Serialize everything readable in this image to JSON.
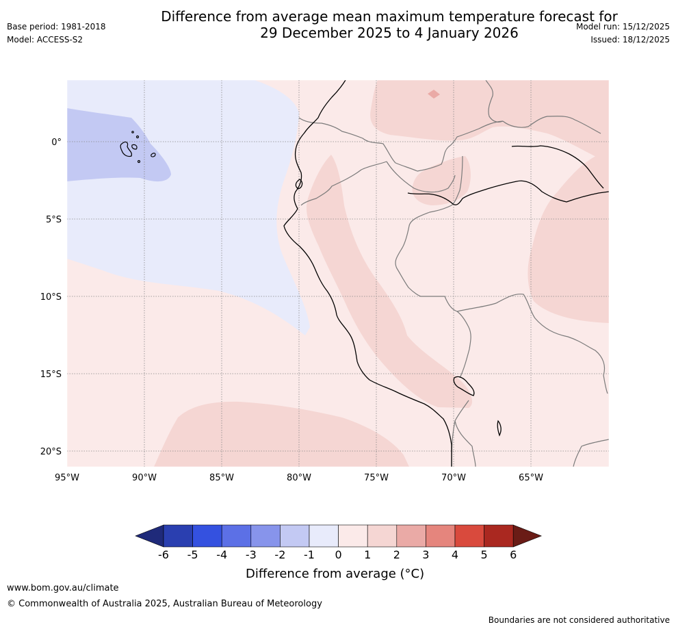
{
  "header": {
    "title_line1": "Difference from average mean maximum temperature forecast for",
    "title_line2": "29 December 2025 to 4 January 2026",
    "base_period": "Base period: 1981-2018",
    "model": "Model: ACCESS-S2",
    "model_run": "Model run: 15/12/2025",
    "issued": "Issued: 18/12/2025"
  },
  "map": {
    "lon_range": [
      -95,
      -60
    ],
    "lat_range": [
      -21,
      4
    ],
    "lon_ticks": [
      "95°W",
      "90°W",
      "85°W",
      "80°W",
      "75°W",
      "70°W",
      "65°W"
    ],
    "lat_ticks": [
      "0°",
      "5°S",
      "10°S",
      "15°S",
      "20°S"
    ],
    "colors": {
      "ocean_cool": "#e8ebfb",
      "galapagos_cool": "#c3c9f3",
      "warm_light": "#fbeae9",
      "warm_mid": "#f5d6d3",
      "warm_hot": "#eaaaa6",
      "coast": "#000000",
      "border": "#7a7a7a",
      "grid": "#888888"
    }
  },
  "colorbar": {
    "ticks": [
      "-6",
      "-5",
      "-4",
      "-3",
      "-2",
      "-1",
      "0",
      "1",
      "2",
      "3",
      "4",
      "5",
      "6"
    ],
    "colors": [
      "#1f2a7a",
      "#2a3fb0",
      "#3451e0",
      "#5c70e6",
      "#8794eb",
      "#c3c9f3",
      "#e8ebfb",
      "#fbeae9",
      "#f5d6d3",
      "#eaaaa6",
      "#e5857d",
      "#d94a3d",
      "#aa2820",
      "#6a1c16"
    ],
    "label": "Difference from average (°C)"
  },
  "footer": {
    "url": "www.bom.gov.au/climate",
    "copyright": "© Commonwealth of Australia 2025, Australian Bureau of Meteorology",
    "disclaimer": "Boundaries are not considered authoritative"
  }
}
